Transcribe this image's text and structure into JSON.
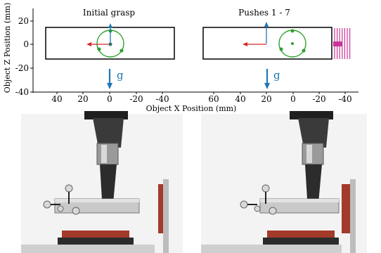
{
  "panels": [
    {
      "title": "Initial grasp",
      "x_ticks": [
        "40",
        "20",
        "0",
        "-20",
        "-40"
      ],
      "gravity_label": "g"
    },
    {
      "title": "Pushes 1 - 7",
      "x_ticks": [
        "60",
        "40",
        "20",
        "0",
        "-20",
        "-40"
      ],
      "gravity_label": "g"
    }
  ],
  "axes": {
    "ylabel": "Object Z Position (mm)",
    "xlabel": "Object X Position (mm)",
    "y_ticks": [
      "20",
      "0",
      "-20",
      "-40"
    ]
  },
  "colors": {
    "object_outline": "#000000",
    "grasp_circle": "#2ca02c",
    "x_arrow": "#d62728",
    "z_arrow": "#1f77b4",
    "gravity_arrow": "#1f77b4",
    "pusher": "#cc3399",
    "gripper_body": "#3a3a3a",
    "fixture_pad": "#a33a2a",
    "background_photo": "#f2f2f2"
  },
  "pushes": {
    "count": 7
  }
}
